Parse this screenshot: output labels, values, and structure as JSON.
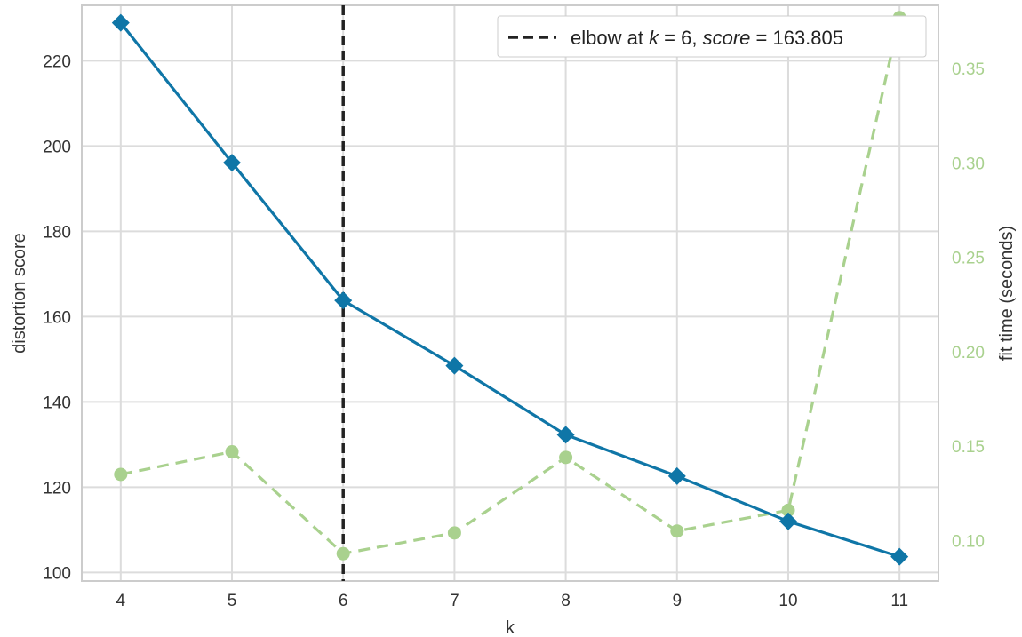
{
  "chart_data": {
    "type": "line",
    "x": [
      4,
      5,
      6,
      7,
      8,
      9,
      10,
      11
    ],
    "xlabel": "k",
    "xlim": [
      3.65,
      11.35
    ],
    "ylabel": "distortion score",
    "ylim": [
      98,
      233
    ],
    "yticks": [
      100,
      120,
      140,
      160,
      180,
      200,
      220
    ],
    "y2label": "fit time (seconds)",
    "y2lim": [
      0.0785,
      0.3835
    ],
    "y2ticks": [
      "0.10",
      "0.15",
      "0.20",
      "0.25",
      "0.30",
      "0.35"
    ],
    "series": [
      {
        "axis": "left",
        "marker": "diamond",
        "line_style": "solid",
        "color": "#0f76a7",
        "values": [
          228.9,
          196.1,
          163.8,
          148.5,
          132.3,
          122.6,
          112.0,
          103.7
        ]
      },
      {
        "axis": "right",
        "marker": "circle",
        "line_style": "dashed",
        "color": "#a9d18e",
        "values": [
          0.135,
          0.147,
          0.093,
          0.104,
          0.144,
          0.105,
          0.116,
          0.377
        ]
      }
    ],
    "elbow": {
      "k": 6,
      "score": 163.805,
      "color": "#222222",
      "line_style": "dashed"
    },
    "legend": {
      "text_prefix": "elbow at ",
      "k_symbol": "k",
      "k_part": " = 6, ",
      "score_symbol": "score",
      "score_part": " = 163.805",
      "placement": "top-right"
    },
    "grid": true,
    "right_axis_color": "#a9d18e"
  }
}
